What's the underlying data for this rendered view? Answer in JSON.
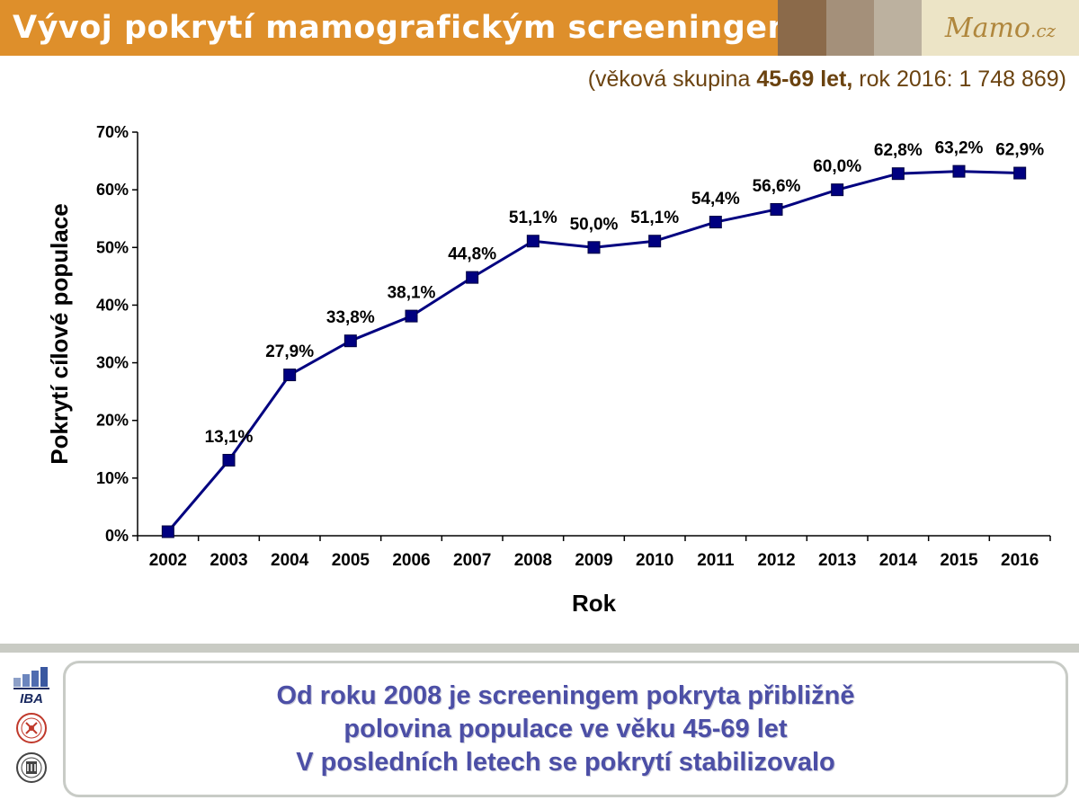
{
  "header": {
    "title": "Vývoj pokrytí mamografickým screeningem",
    "swatch_colors": [
      "#8b6a4a",
      "#a4907a",
      "#bcb19f"
    ],
    "logo": {
      "main": "Mamo",
      "suffix": ".cz"
    }
  },
  "subtitle": {
    "prefix": "(věková skupina ",
    "bold": "45-69 let,",
    "suffix": " rok 2016: 1 748 869)"
  },
  "chart_data": {
    "type": "line",
    "categories": [
      "2002",
      "2003",
      "2004",
      "2005",
      "2006",
      "2007",
      "2008",
      "2009",
      "2010",
      "2011",
      "2012",
      "2013",
      "2014",
      "2015",
      "2016"
    ],
    "series": [
      {
        "values": [
          0.7,
          13.1,
          27.9,
          33.8,
          38.1,
          44.8,
          51.1,
          50.0,
          51.1,
          54.4,
          56.6,
          60.0,
          62.8,
          63.2,
          62.9
        ],
        "color": "#000080",
        "marker": "square"
      }
    ],
    "data_labels": [
      "",
      "13,1%",
      "27,9%",
      "33,8%",
      "38,1%",
      "44,8%",
      "51,1%",
      "50,0%",
      "51,1%",
      "54,4%",
      "56,6%",
      "60,0%",
      "62,8%",
      "63,2%",
      "62,9%"
    ],
    "yticks": [
      0,
      10,
      20,
      30,
      40,
      50,
      60,
      70
    ],
    "ytick_labels": [
      "0%",
      "10%",
      "20%",
      "30%",
      "40%",
      "50%",
      "60%",
      "70%"
    ],
    "ylim": [
      0,
      70
    ],
    "xlabel": "Rok",
    "ylabel": "Pokrytí cílové populace",
    "grid": false
  },
  "footer": {
    "logo_label": "IBA",
    "message_lines": [
      "Od roku 2008 je screeningem pokryta přibližně",
      "polovina populace ve věku 45-69 let",
      "V posledních letech se pokrytí stabilizovalo"
    ]
  }
}
